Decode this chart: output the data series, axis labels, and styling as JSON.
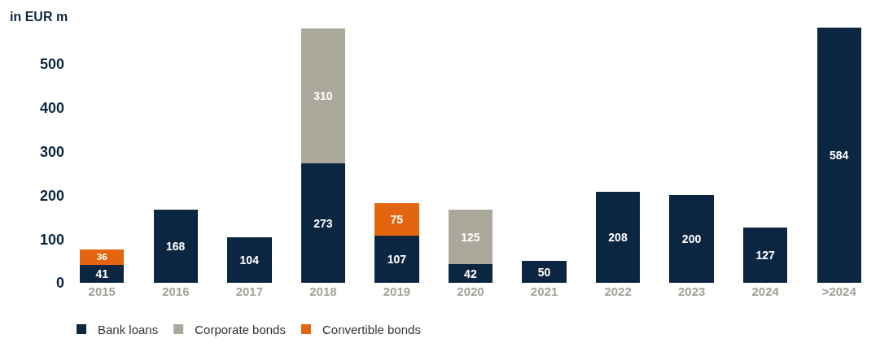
{
  "chart_data": {
    "type": "bar",
    "ylabel": "in EUR m",
    "stacked": true,
    "categories": [
      "2015",
      "2016",
      "2017",
      "2018",
      "2019",
      "2020",
      "2021",
      "2022",
      "2023",
      "2024",
      ">2024"
    ],
    "series": [
      {
        "name": "Bank loans",
        "color": "#0b2640",
        "values": [
          41,
          168,
          104,
          273,
          107,
          42,
          50,
          208,
          200,
          127,
          584
        ]
      },
      {
        "name": "Corporate bonds",
        "color": "#aba89c",
        "values": [
          null,
          null,
          null,
          310,
          null,
          125,
          null,
          null,
          null,
          null,
          null
        ]
      },
      {
        "name": "Convertible bonds",
        "color": "#e3650f",
        "values": [
          36,
          null,
          null,
          null,
          75,
          null,
          null,
          null,
          null,
          null,
          null
        ]
      }
    ],
    "ylim": [
      0,
      584
    ],
    "yticks": [
      0,
      100,
      200,
      300,
      400,
      500
    ],
    "grid": false,
    "legend": "bottom left",
    "data_labels": true
  }
}
